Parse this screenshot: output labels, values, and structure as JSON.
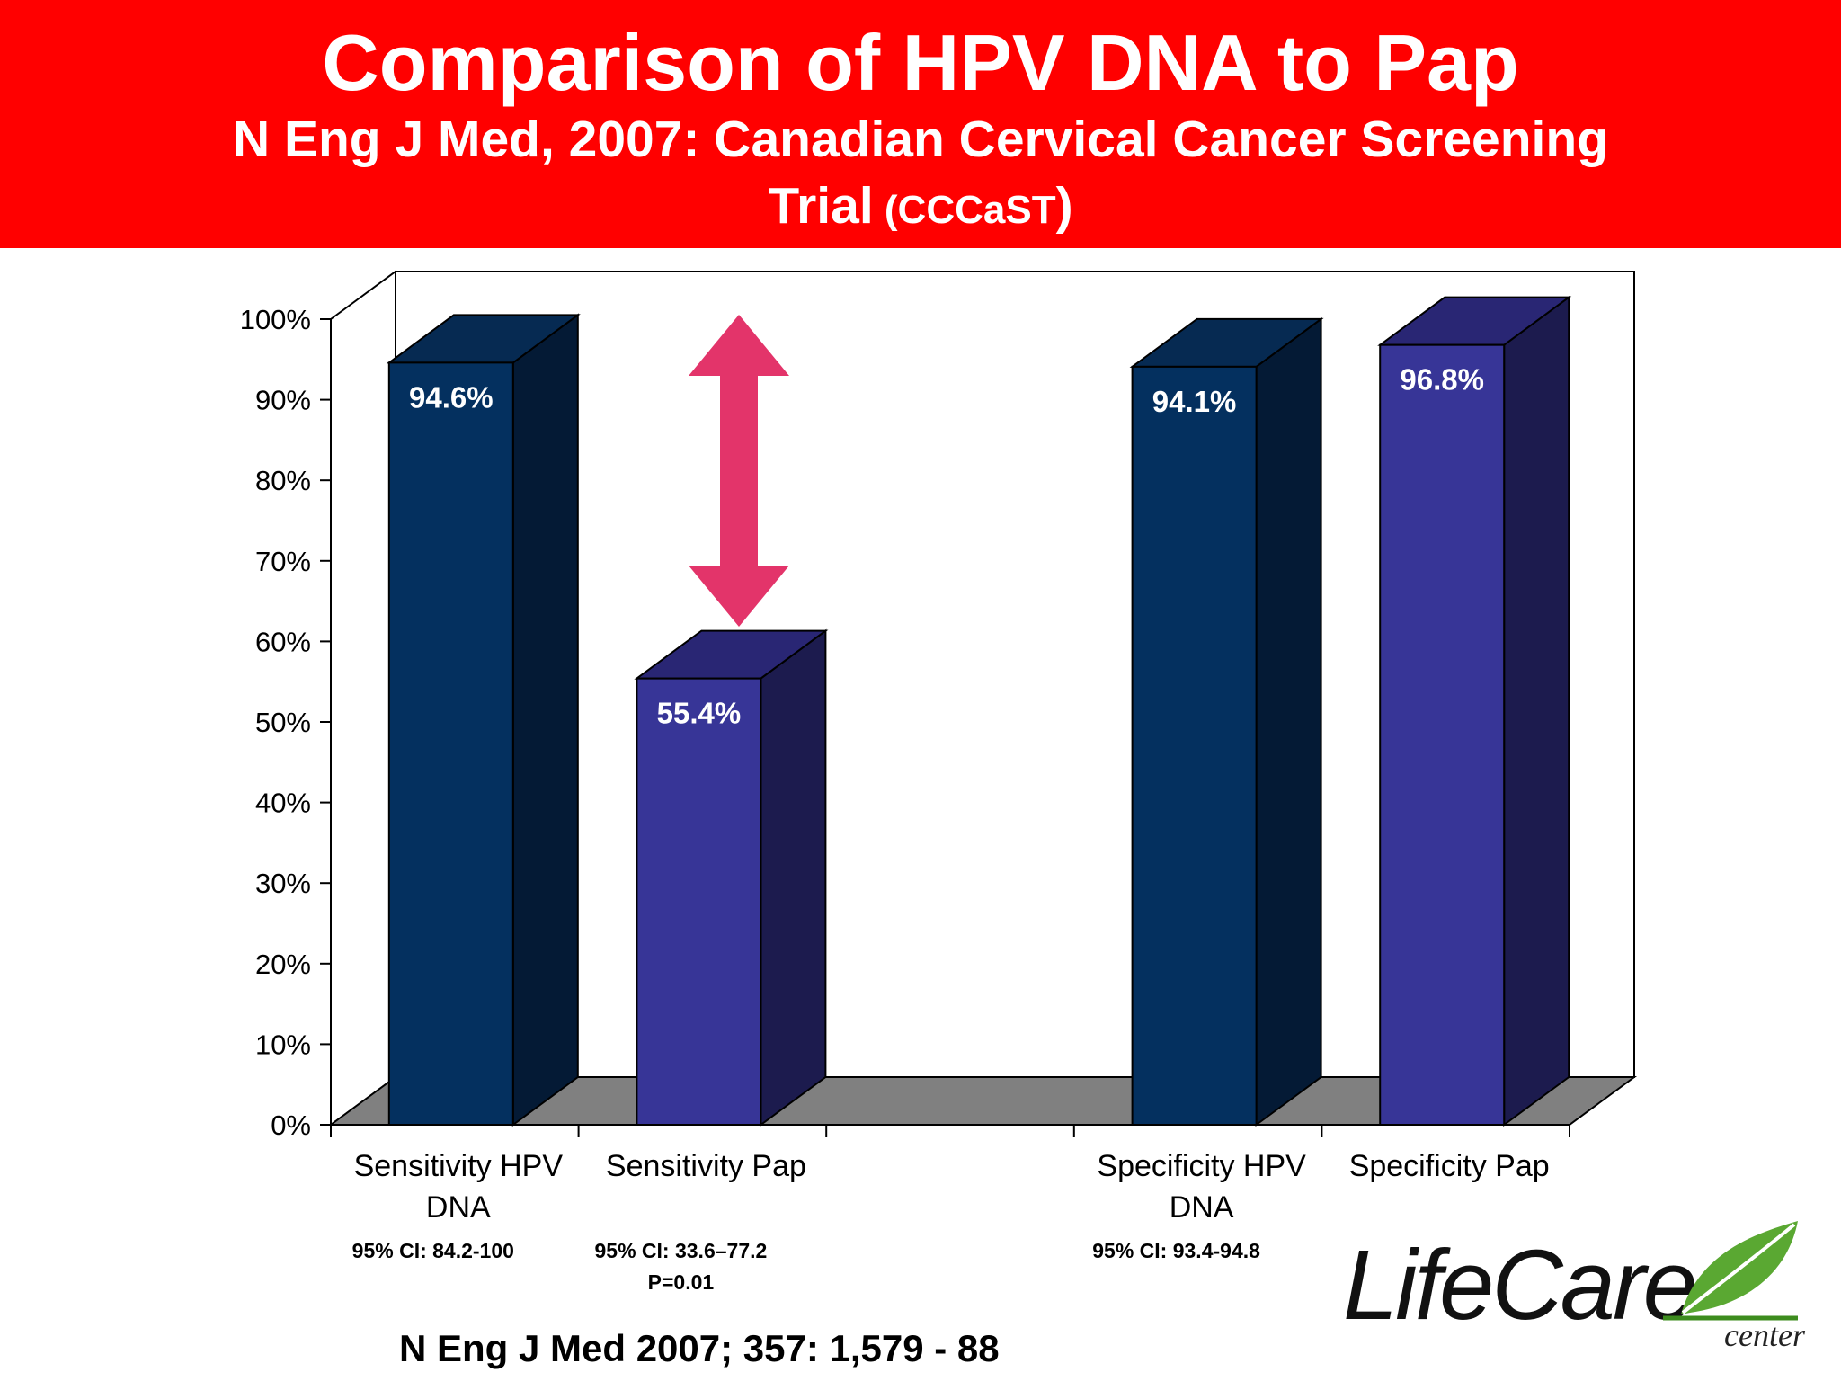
{
  "header": {
    "title": "Comparison of HPV DNA to Pap",
    "subtitle_line1": "N Eng J Med, 2007: Canadian Cervical Cancer Screening",
    "subtitle_line2_main": "Trial",
    "subtitle_line2_open": " (",
    "subtitle_line2_abbr": "CCCaST",
    "subtitle_line2_close": ")"
  },
  "chart_data": {
    "type": "bar",
    "title": "",
    "xlabel": "",
    "ylabel": "",
    "ylim": [
      0,
      100
    ],
    "yticks": [
      "0%",
      "10%",
      "20%",
      "30%",
      "40%",
      "50%",
      "60%",
      "70%",
      "80%",
      "90%",
      "100%"
    ],
    "categories": [
      {
        "label_lines": [
          "Sensitivity HPV",
          "DNA"
        ],
        "value": 94.6,
        "data_label": "94.6%",
        "color_face": "#04305f",
        "color_side": "#041a35",
        "color_top": "#062a52",
        "ci_lines": [
          "95% CI: 84.2-100"
        ]
      },
      {
        "label_lines": [
          "Sensitivity Pap"
        ],
        "value": 55.4,
        "data_label": "55.4%",
        "color_face": "#373597",
        "color_side": "#1c1b4e",
        "color_top": "#292674",
        "ci_lines": [
          "95% CI: 33.6–77.2",
          "P=0.01"
        ]
      },
      {
        "label_lines": [],
        "value": null,
        "data_label": "",
        "ci_lines": []
      },
      {
        "label_lines": [
          "Specificity HPV",
          "DNA"
        ],
        "value": 94.1,
        "data_label": "94.1%",
        "color_face": "#04305f",
        "color_side": "#041a35",
        "color_top": "#062a52",
        "ci_lines": [
          "95% CI: 93.4-94.8"
        ]
      },
      {
        "label_lines": [
          "Specificity Pap"
        ],
        "value": 96.8,
        "data_label": "96.8%",
        "color_face": "#373597",
        "color_side": "#1c1b4e",
        "color_top": "#292674",
        "ci_lines": []
      }
    ],
    "annotation": "double-headed-arrow",
    "arrow_color": "#e3346a",
    "floor_color": "#808080"
  },
  "citation": "N Eng J Med 2007; 357: 1,579 - 88",
  "logo": {
    "word": "LifeCare",
    "sub": "center",
    "leaf_color": "#5aa832",
    "underline_color": "#3d8c1e"
  }
}
